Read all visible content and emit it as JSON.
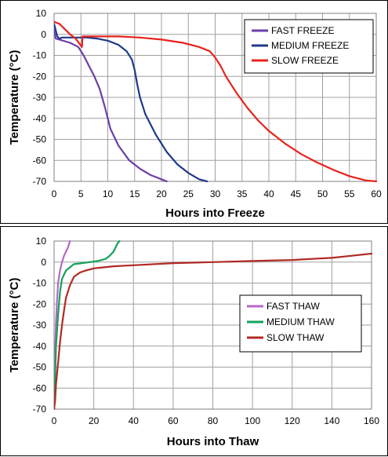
{
  "chart_data": [
    {
      "type": "line",
      "xlabel": "Hours into Freeze",
      "ylabel": "Temperature (°C)",
      "xlim": [
        0,
        60
      ],
      "ylim": [
        -70,
        10
      ],
      "xticks": [
        0,
        5,
        10,
        15,
        20,
        25,
        30,
        35,
        40,
        45,
        50,
        55,
        60
      ],
      "yticks": [
        10,
        0,
        -10,
        -20,
        -30,
        -40,
        -50,
        -60,
        -70
      ],
      "grid": true,
      "legend_position": "top-right",
      "series": [
        {
          "name": "FAST FREEZE",
          "color": "#6a3fa8",
          "x": [
            0,
            0.3,
            1,
            3,
            4.5,
            5.5,
            6.5,
            7.5,
            8.5,
            9.5,
            10.5,
            12,
            14,
            16,
            18,
            20,
            21
          ],
          "y": [
            2,
            -2,
            -2.5,
            -4,
            -6,
            -10,
            -15,
            -20,
            -26,
            -35,
            -45,
            -53,
            -60,
            -64,
            -67,
            -69,
            -70
          ]
        },
        {
          "name": "MEDIUM FREEZE",
          "color": "#1f3a8a",
          "x": [
            0,
            0.3,
            0.6,
            1,
            1.5,
            4,
            6,
            8,
            10,
            12,
            13.5,
            14.5,
            15,
            15.5,
            16,
            17,
            19,
            21,
            23,
            25,
            27,
            28.5
          ],
          "y": [
            5,
            2,
            -1,
            -2,
            -1.5,
            -1.5,
            -1.5,
            -2,
            -3,
            -5,
            -8,
            -12,
            -17,
            -24,
            -30,
            -38,
            -48,
            -56,
            -62,
            -66,
            -69,
            -70
          ]
        },
        {
          "name": "SLOW FREEZE",
          "color": "#e8231d",
          "x": [
            0,
            1,
            2,
            3,
            4,
            5.2,
            5.3,
            8,
            12,
            16,
            20,
            24,
            27,
            29,
            30,
            31,
            32,
            34,
            36,
            38,
            40,
            43,
            46,
            49,
            52,
            55,
            58,
            60
          ],
          "y": [
            6,
            5,
            2.5,
            0,
            -2,
            -6,
            -1,
            -1,
            -1,
            -1.5,
            -2.5,
            -4,
            -6,
            -8,
            -11,
            -15,
            -20,
            -28,
            -35,
            -41,
            -46,
            -52,
            -57,
            -61,
            -64.5,
            -67.5,
            -69.5,
            -70
          ]
        }
      ]
    },
    {
      "type": "line",
      "xlabel": "Hours into Thaw",
      "ylabel": "Temperature (°C)",
      "xlim": [
        0,
        160
      ],
      "ylim": [
        -70,
        10
      ],
      "xticks": [
        0,
        20,
        40,
        60,
        80,
        100,
        120,
        140,
        160
      ],
      "yticks": [
        10,
        0,
        -10,
        -20,
        -30,
        -40,
        -50,
        -60,
        -70
      ],
      "grid": true,
      "legend_position": "center-right",
      "series": [
        {
          "name": "FAST THAW",
          "color": "#b569c9",
          "x": [
            0,
            0.3,
            0.6,
            1,
            1.5,
            2,
            3,
            4,
            5,
            6,
            7,
            8
          ],
          "y": [
            -70,
            -55,
            -40,
            -28,
            -18,
            -10,
            -4,
            0,
            3,
            5,
            7,
            10
          ]
        },
        {
          "name": "MEDIUM THAW",
          "color": "#15a05a",
          "x": [
            0,
            0.5,
            1,
            2,
            3,
            4,
            6,
            8,
            10,
            14,
            18,
            22,
            26,
            28,
            30,
            31,
            32,
            33
          ],
          "y": [
            -70,
            -55,
            -40,
            -25,
            -14,
            -8,
            -4,
            -2.5,
            -1,
            -0.5,
            0,
            0.5,
            1.5,
            3,
            5,
            7,
            9,
            10
          ]
        },
        {
          "name": "SLOW THAW",
          "color": "#b02a23",
          "x": [
            0,
            0.5,
            1,
            2,
            3,
            4,
            5,
            6,
            8,
            10,
            13,
            16,
            20,
            30,
            40,
            60,
            80,
            100,
            120,
            130,
            140,
            150,
            160
          ],
          "y": [
            -70,
            -66,
            -58,
            -48,
            -38,
            -30,
            -23,
            -17,
            -11,
            -7,
            -5,
            -4,
            -3,
            -2,
            -1.5,
            -0.5,
            0,
            0.5,
            1,
            1.5,
            2,
            3,
            4
          ]
        }
      ]
    }
  ]
}
